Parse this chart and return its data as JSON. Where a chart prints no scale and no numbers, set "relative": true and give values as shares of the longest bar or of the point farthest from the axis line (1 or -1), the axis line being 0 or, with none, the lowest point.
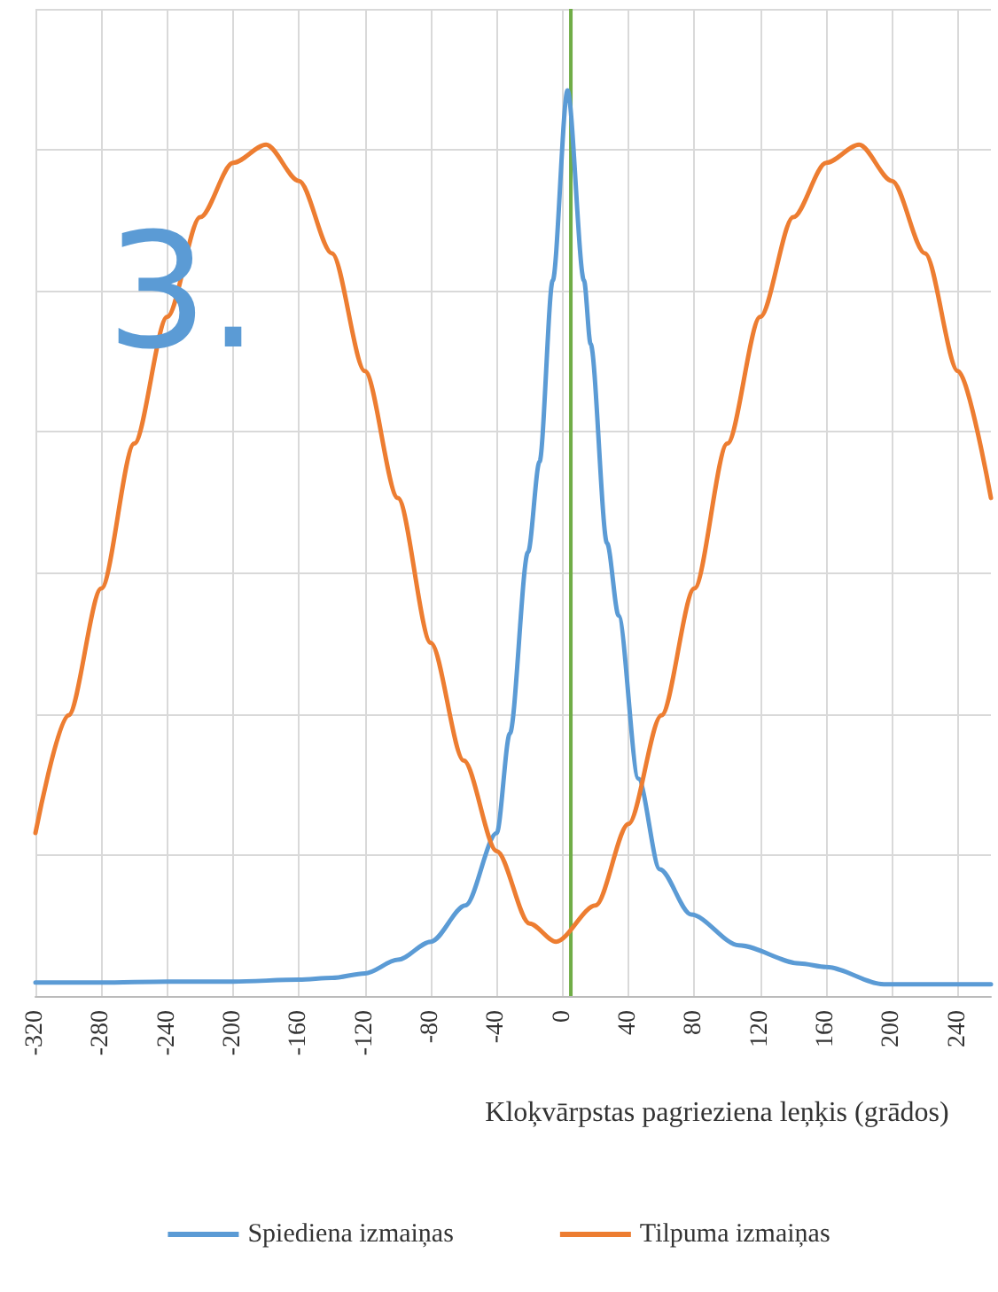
{
  "chart_data": {
    "type": "line",
    "relative": true,
    "xlabel": "Kloķvārpstas pagrieziena leņķis (grādos)",
    "annotations": [
      "3."
    ],
    "xlim": [
      -320,
      260
    ],
    "xticks": [
      -320,
      -280,
      -240,
      -200,
      -160,
      -120,
      -80,
      -40,
      0,
      40,
      80,
      120,
      160,
      200,
      240
    ],
    "grid": true,
    "legend": "bottom",
    "ref_lines": [
      {
        "axis": "x",
        "value": 5,
        "color": "#70ad47"
      }
    ],
    "series": [
      {
        "name": "Spiediena izmaiņas",
        "color": "#5b9bd5",
        "x": [
          -320,
          -280,
          -240,
          -200,
          -160,
          -140,
          -120,
          -100,
          -80,
          -59,
          -40,
          -32,
          -21,
          -14,
          -6,
          3,
          13,
          17,
          27,
          34,
          46,
          59,
          78,
          107,
          144,
          160,
          195,
          230,
          260
        ],
        "values": [
          0.015,
          0.015,
          0.016,
          0.016,
          0.018,
          0.02,
          0.025,
          0.04,
          0.06,
          0.1,
          0.18,
          0.29,
          0.49,
          0.59,
          0.79,
          1,
          0.79,
          0.72,
          0.5,
          0.42,
          0.24,
          0.14,
          0.09,
          0.056,
          0.036,
          0.032,
          0.013,
          0.013,
          0.013
        ]
      },
      {
        "name": "Tilpuma izmaiņas",
        "color": "#ed7d31",
        "x": [
          -320,
          -300,
          -280,
          -260,
          -240,
          -220,
          -200,
          -180,
          -160,
          -140,
          -120,
          -100,
          -80,
          -60,
          -40,
          -20,
          -4,
          20,
          40,
          60,
          80,
          100,
          120,
          140,
          160,
          180,
          200,
          220,
          240,
          260
        ],
        "values": [
          0.18,
          0.31,
          0.45,
          0.61,
          0.75,
          0.86,
          0.92,
          0.94,
          0.9,
          0.82,
          0.69,
          0.55,
          0.39,
          0.26,
          0.16,
          0.08,
          0.06,
          0.1,
          0.19,
          0.31,
          0.45,
          0.61,
          0.75,
          0.86,
          0.92,
          0.94,
          0.9,
          0.82,
          0.69,
          0.55
        ]
      }
    ]
  }
}
